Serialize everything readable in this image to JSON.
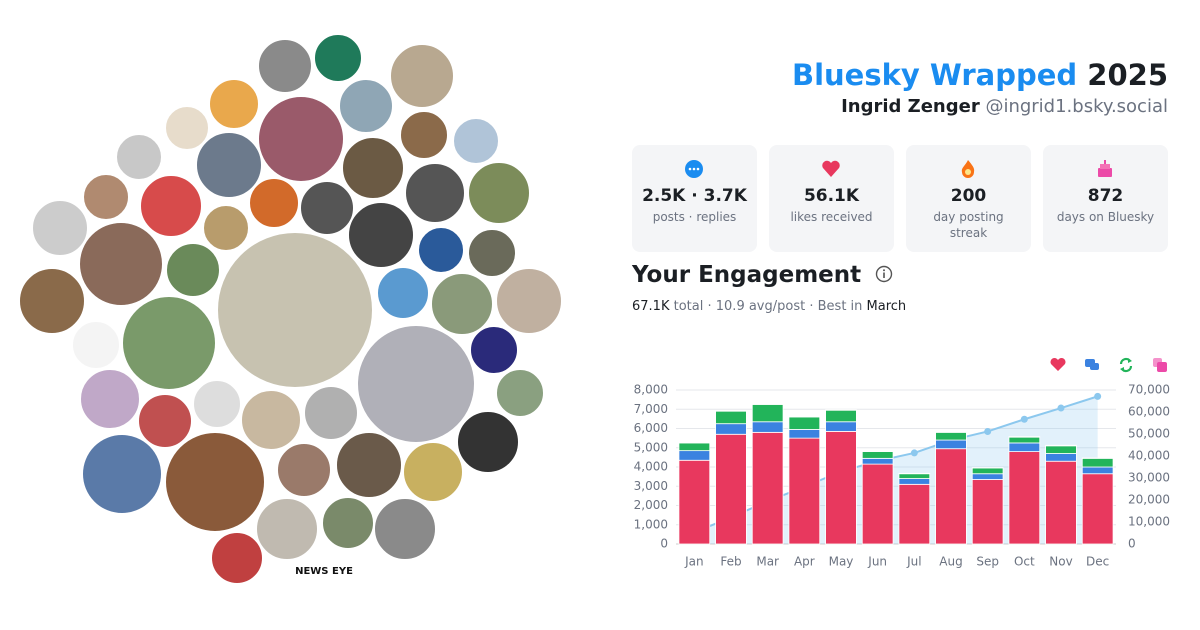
{
  "header": {
    "title": "Bluesky Wrapped",
    "year": "2025",
    "name": "Ingrid Zenger",
    "handle": "@ingrid1.bsky.social"
  },
  "stats": [
    {
      "value": "2.5K · 3.7K",
      "label": "posts · replies"
    },
    {
      "value": "56.1K",
      "label": "likes received"
    },
    {
      "value": "200",
      "label": "day posting streak"
    },
    {
      "value": "872",
      "label": "days on Bluesky"
    }
  ],
  "avatars": {
    "logo": "NEWS EYE"
  },
  "engagement": {
    "title": "Your Engagement",
    "total": "67.1K",
    "total_label": "total ·",
    "avg": "10.9 avg/post ·",
    "best_label": "Best in",
    "best": "March"
  },
  "chart_data": {
    "type": "bar",
    "categories": [
      "Jan",
      "Feb",
      "Mar",
      "Apr",
      "May",
      "Jun",
      "Jul",
      "Aug",
      "Sep",
      "Oct",
      "Nov",
      "Dec"
    ],
    "stacked": true,
    "series": [
      {
        "color": "#e8385e",
        "values": [
          4350,
          5700,
          5800,
          5500,
          5850,
          4150,
          3100,
          4950,
          3350,
          4800,
          4300,
          3650
        ]
      },
      {
        "color": "#3b82e0",
        "values": [
          500,
          550,
          550,
          450,
          500,
          300,
          300,
          450,
          300,
          450,
          400,
          350
        ]
      },
      {
        "color": "#22b45a",
        "values": [
          400,
          650,
          900,
          650,
          600,
          350,
          250,
          400,
          300,
          300,
          400,
          450
        ]
      },
      {
        "color": "#ec4aa8",
        "values": [
          30,
          40,
          40,
          30,
          30,
          20,
          20,
          30,
          20,
          30,
          30,
          20
        ]
      },
      {
        "type": "line",
        "axis": "y2",
        "color": "#8cc8ee",
        "values": [
          5250,
          12150,
          19400,
          26000,
          32950,
          37750,
          41400,
          47200,
          51150,
          56700,
          61800,
          67100
        ]
      }
    ],
    "ylim": [
      0,
      8000
    ],
    "yticks": [
      0,
      {
        "value": 1000,
        "label": "1,000"
      },
      {
        "value": 2000,
        "label": "2,000"
      },
      {
        "value": 3000,
        "label": "3,000"
      },
      {
        "value": 4000,
        "label": "4,000"
      },
      {
        "value": 5000,
        "label": "5,000"
      },
      {
        "value": 6000,
        "label": "6,000"
      },
      {
        "value": 7000,
        "label": "7,000"
      },
      {
        "value": 8000,
        "label": "8,000"
      }
    ],
    "y2lim": [
      0,
      70000
    ],
    "y2ticks": [
      0,
      {
        "value": 10000,
        "label": "10,000"
      },
      {
        "value": 20000,
        "label": "20,000"
      },
      {
        "value": 30000,
        "label": "30,000"
      },
      {
        "value": 40000,
        "label": "40,000"
      },
      {
        "value": 50000,
        "label": "50,000"
      },
      {
        "value": 60000,
        "label": "60,000"
      },
      {
        "value": 70000,
        "label": "70,000"
      }
    ],
    "grid": true
  }
}
